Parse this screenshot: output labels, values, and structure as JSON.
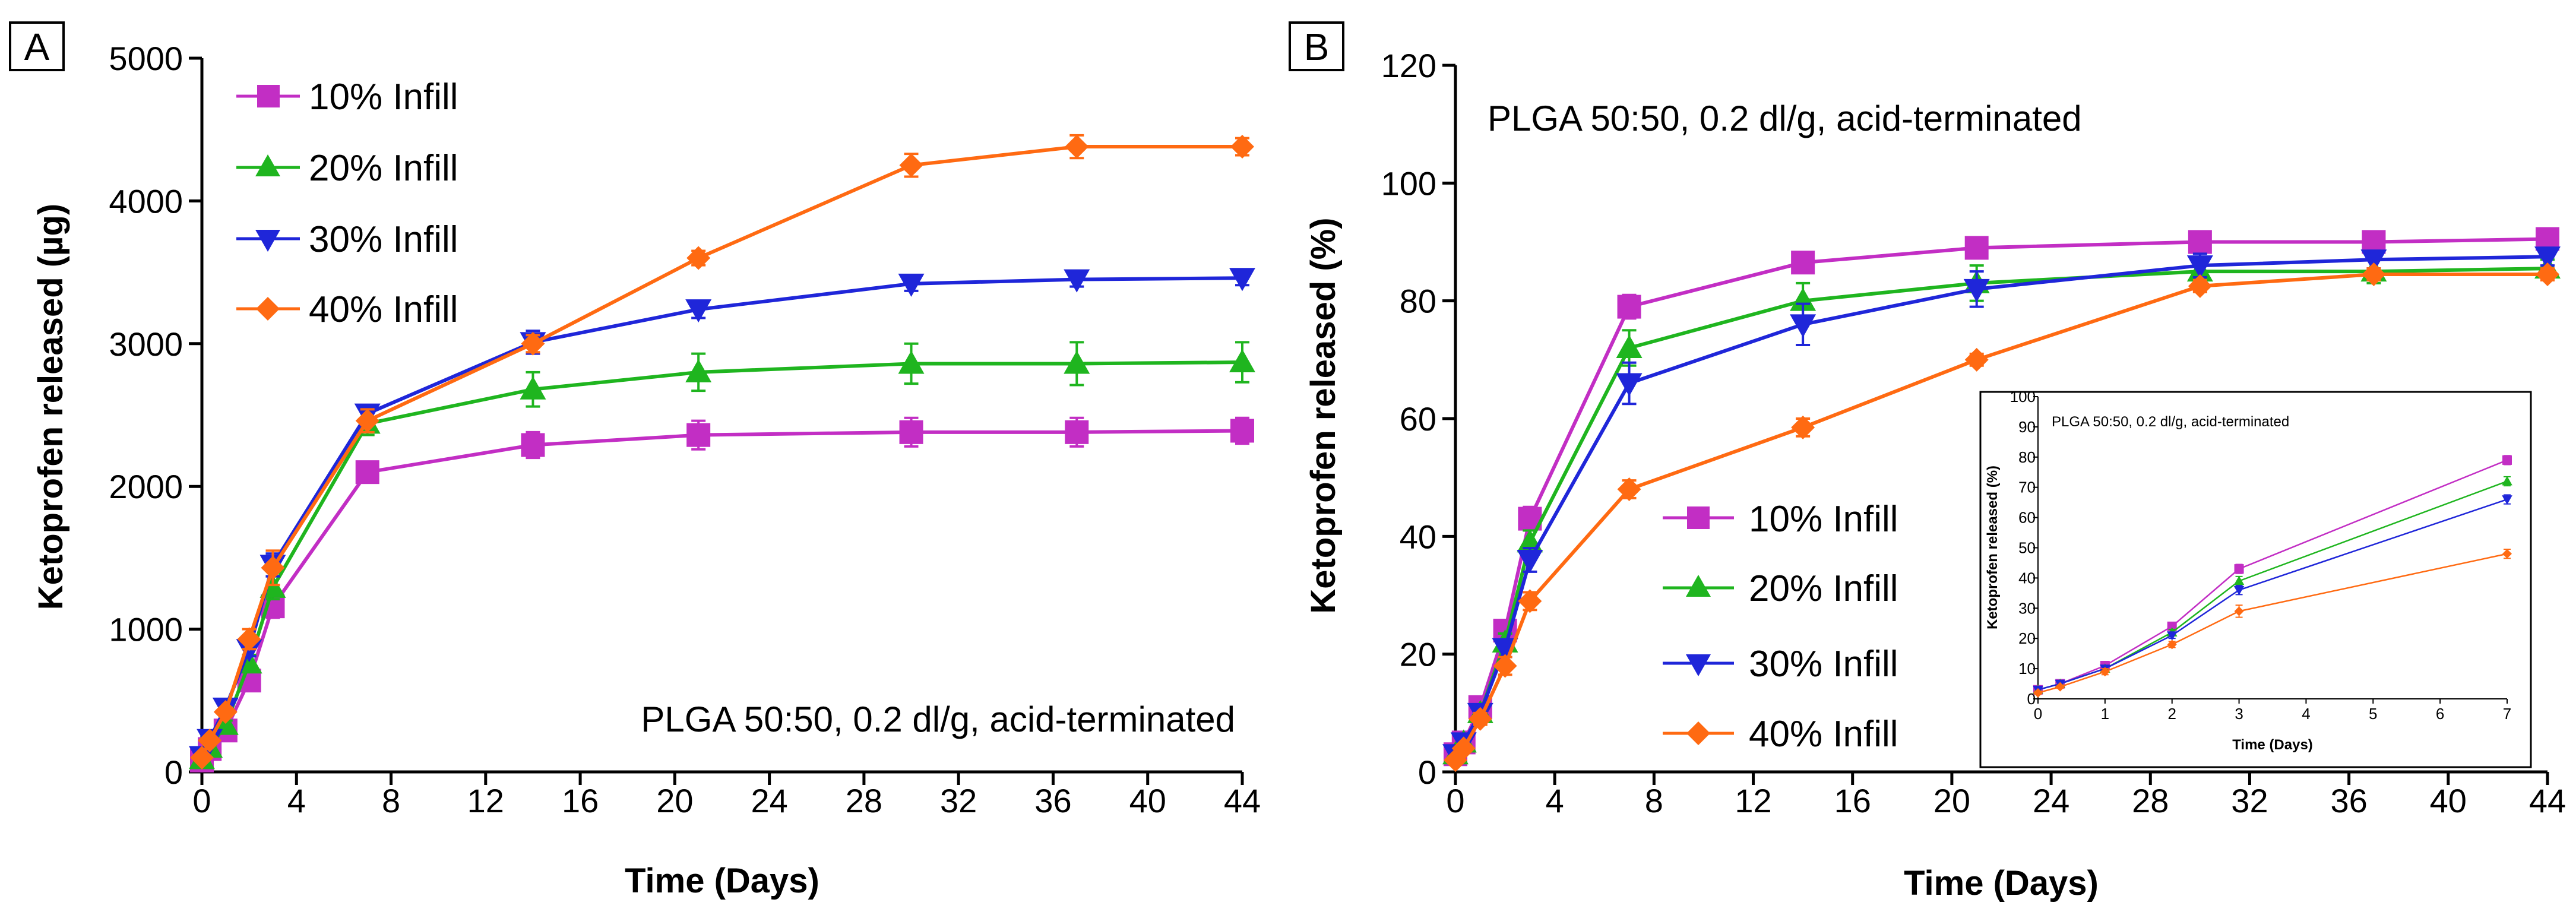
{
  "figure": {
    "colors": {
      "magenta": "#C22EC4",
      "green": "#1FB51F",
      "blue": "#1F26D9",
      "orange": "#FF6A12"
    }
  },
  "chart_data": [
    {
      "panel": "A",
      "type": "line",
      "title": "",
      "xlabel": "Time (Days)",
      "ylabel": "Ketoprofen released (µg)",
      "xlim": [
        0,
        44
      ],
      "ylim": [
        0,
        5000
      ],
      "xticks": [
        0,
        4,
        8,
        12,
        16,
        20,
        24,
        28,
        32,
        36,
        40,
        44
      ],
      "yticks": [
        0,
        1000,
        2000,
        3000,
        4000,
        5000
      ],
      "annotation": "PLGA 50:50, 0.2 dl/g, acid-terminated",
      "legend_position": "top-left",
      "series": [
        {
          "name": "10% Infill",
          "color": "#C22EC4",
          "marker": "square",
          "x": [
            0,
            0.33,
            1,
            2,
            3,
            7,
            14,
            21,
            30,
            37,
            44
          ],
          "y": [
            80,
            160,
            290,
            640,
            1160,
            2100,
            2290,
            2360,
            2380,
            2380,
            2390
          ],
          "err": [
            20,
            20,
            30,
            60,
            80,
            70,
            90,
            100,
            100,
            100,
            90
          ]
        },
        {
          "name": "20% Infill",
          "color": "#1FB51F",
          "marker": "triangle-up",
          "x": [
            0,
            0.33,
            1,
            2,
            3,
            7,
            14,
            21,
            30,
            37,
            44
          ],
          "y": [
            90,
            170,
            330,
            760,
            1290,
            2440,
            2680,
            2800,
            2860,
            2860,
            2870
          ],
          "err": [
            20,
            20,
            30,
            60,
            80,
            80,
            120,
            130,
            140,
            150,
            140
          ]
        },
        {
          "name": "30% Infill",
          "color": "#1F26D9",
          "marker": "triangle-down",
          "x": [
            0,
            0.33,
            1,
            2,
            3,
            7,
            14,
            21,
            30,
            37,
            44
          ],
          "y": [
            110,
            230,
            450,
            860,
            1450,
            2510,
            3010,
            3240,
            3420,
            3450,
            3460
          ],
          "err": [
            20,
            20,
            30,
            50,
            80,
            60,
            80,
            60,
            50,
            50,
            50
          ]
        },
        {
          "name": "40% Infill",
          "color": "#FF6A12",
          "marker": "diamond",
          "x": [
            0,
            0.33,
            1,
            2,
            3,
            7,
            14,
            21,
            30,
            37,
            44
          ],
          "y": [
            100,
            220,
            420,
            930,
            1430,
            2460,
            3000,
            3600,
            4250,
            4380,
            4380
          ],
          "err": [
            20,
            20,
            30,
            70,
            120,
            80,
            60,
            50,
            80,
            80,
            60
          ]
        }
      ]
    },
    {
      "panel": "B",
      "type": "line",
      "title": "PLGA 50:50, 0.2 dl/g, acid-terminated",
      "xlabel": "Time (Days)",
      "ylabel": "Ketoprofen released (%)",
      "xlim": [
        0,
        44
      ],
      "ylim": [
        0,
        120
      ],
      "xticks": [
        0,
        4,
        8,
        12,
        16,
        20,
        24,
        28,
        32,
        36,
        40,
        44
      ],
      "yticks": [
        0,
        20,
        40,
        60,
        80,
        100,
        120
      ],
      "legend_position": "center",
      "series": [
        {
          "name": "10% Infill",
          "color": "#C22EC4",
          "marker": "square",
          "x": [
            0,
            0.33,
            1,
            2,
            3,
            7,
            14,
            21,
            30,
            37,
            44
          ],
          "y": [
            3,
            5,
            11,
            24,
            43,
            79,
            86.5,
            89,
            90,
            90,
            90.5
          ],
          "err": [
            0.5,
            0.5,
            1,
            1.5,
            2,
            2,
            1.5,
            1,
            1,
            1,
            1
          ]
        },
        {
          "name": "20% Infill",
          "color": "#1FB51F",
          "marker": "triangle-up",
          "x": [
            0,
            0.33,
            1,
            2,
            3,
            7,
            14,
            21,
            30,
            37,
            44
          ],
          "y": [
            3,
            5,
            10,
            22,
            39,
            72,
            80,
            83,
            85,
            85,
            85.5
          ],
          "err": [
            0.5,
            0.5,
            1,
            1.5,
            2,
            3,
            3,
            3,
            2,
            2,
            1.5
          ]
        },
        {
          "name": "30% Infill",
          "color": "#1F26D9",
          "marker": "triangle-down",
          "x": [
            0,
            0.33,
            1,
            2,
            3,
            7,
            14,
            21,
            30,
            37,
            44
          ],
          "y": [
            3,
            5,
            10,
            21,
            36,
            66,
            76,
            82,
            86,
            87,
            87.5
          ],
          "err": [
            0.5,
            0.5,
            1,
            1.5,
            2,
            3.5,
            3.5,
            3,
            2,
            1.5,
            1.5
          ]
        },
        {
          "name": "40% Infill",
          "color": "#FF6A12",
          "marker": "diamond",
          "x": [
            0,
            0.33,
            1,
            2,
            3,
            7,
            14,
            21,
            30,
            37,
            44
          ],
          "y": [
            2,
            4,
            9,
            18,
            29,
            48,
            58.5,
            70,
            82.5,
            84.5,
            84.5
          ],
          "err": [
            0.5,
            0.5,
            1,
            1.5,
            1.5,
            1.5,
            1.5,
            1,
            1,
            1,
            1
          ]
        }
      ]
    },
    {
      "panel": "B-inset",
      "type": "line",
      "title": "PLGA 50:50, 0.2 dl/g, acid-terminated",
      "xlabel": "Time (Days)",
      "ylabel": "Ketoprofen released (%)",
      "xlim": [
        0,
        7
      ],
      "ylim": [
        0,
        100
      ],
      "xticks": [
        0,
        1,
        2,
        3,
        4,
        5,
        6,
        7
      ],
      "yticks": [
        0,
        10,
        20,
        30,
        40,
        50,
        60,
        70,
        80,
        90,
        100
      ],
      "series": [
        {
          "name": "10% Infill",
          "color": "#C22EC4",
          "marker": "square",
          "x": [
            0,
            0.33,
            1,
            2,
            3,
            7
          ],
          "y": [
            3,
            5,
            11,
            24,
            43,
            79
          ],
          "err": [
            0.5,
            0.5,
            1,
            1,
            1.5,
            1.5
          ]
        },
        {
          "name": "20% Infill",
          "color": "#1FB51F",
          "marker": "triangle-up",
          "x": [
            0,
            0.33,
            1,
            2,
            3,
            7
          ],
          "y": [
            3,
            5,
            10,
            22,
            39,
            72
          ],
          "err": [
            0.5,
            0.5,
            1,
            1,
            1.5,
            1.5
          ]
        },
        {
          "name": "30% Infill",
          "color": "#1F26D9",
          "marker": "triangle-down",
          "x": [
            0,
            0.33,
            1,
            2,
            3,
            7
          ],
          "y": [
            3,
            5,
            10,
            21,
            36,
            66
          ],
          "err": [
            0.5,
            0.5,
            1,
            1,
            1.5,
            1.5
          ]
        },
        {
          "name": "40% Infill",
          "color": "#FF6A12",
          "marker": "diamond",
          "x": [
            0,
            0.33,
            1,
            2,
            3,
            7
          ],
          "y": [
            2,
            4,
            9,
            18,
            29,
            48
          ],
          "err": [
            0.5,
            0.5,
            1,
            1,
            2,
            1.5
          ]
        }
      ]
    }
  ]
}
